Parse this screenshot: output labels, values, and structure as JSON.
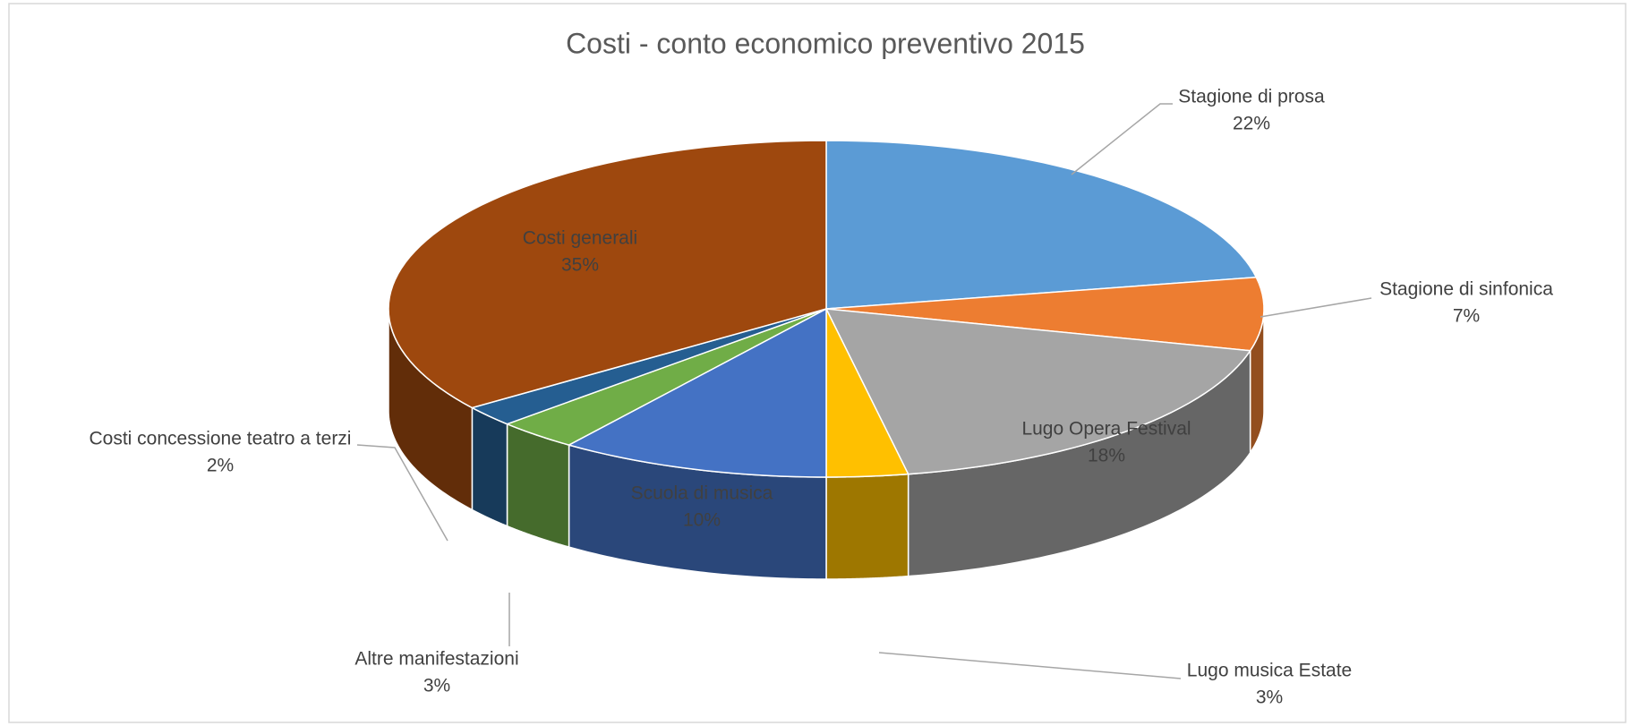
{
  "chart_data": {
    "type": "pie3d",
    "title": "Costi - conto economico preventivo 2015",
    "categories": [
      "Stagione di prosa",
      "Stagione di sinfonica",
      "Lugo Opera Festival",
      "Lugo musica Estate",
      "Scuola di musica",
      "Altre manifestazioni",
      "Costi concessione teatro a terzi",
      "Costi generali"
    ],
    "values": [
      22,
      7,
      18,
      3,
      10,
      3,
      2,
      35
    ],
    "value_labels": [
      "22%",
      "7%",
      "18%",
      "3%",
      "10%",
      "3%",
      "2%",
      "35%"
    ],
    "colors": [
      "#5b9bd5",
      "#ed7d31",
      "#a5a5a5",
      "#ffc000",
      "#4472c4",
      "#70ad47",
      "#255e91",
      "#9e480e"
    ]
  }
}
